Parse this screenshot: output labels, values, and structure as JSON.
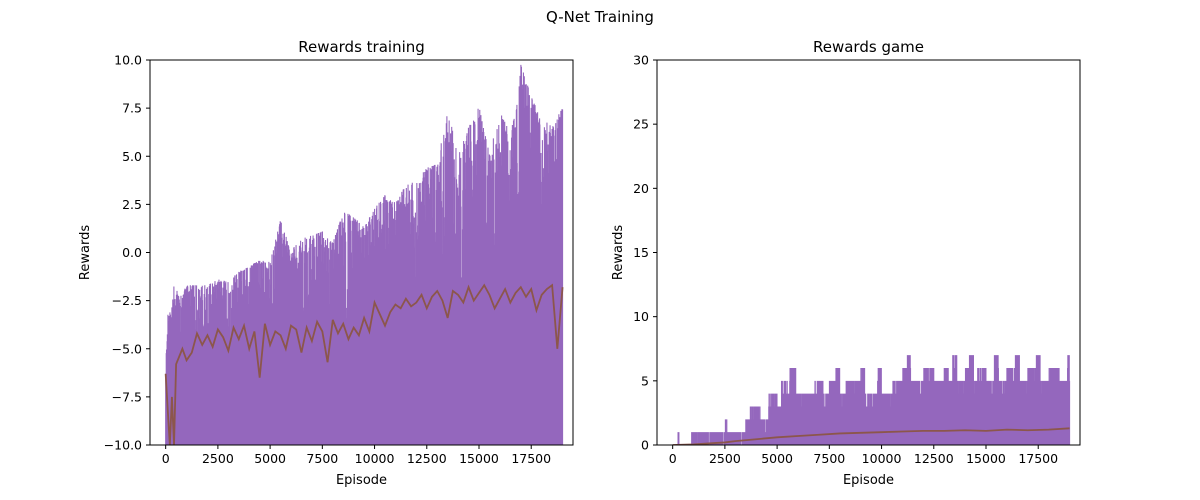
{
  "figure": {
    "title": "Q-Net Training"
  },
  "colors": {
    "raw_series": "#9467bd",
    "smoothed_series": "#8c564b"
  },
  "chart_data": [
    {
      "type": "line",
      "title": "Rewards training",
      "xlabel": "Episode",
      "ylabel": "Rewards",
      "xlim": [
        -750,
        19500
      ],
      "ylim": [
        -10,
        10
      ],
      "xticks": [
        0,
        2500,
        5000,
        7500,
        10000,
        12500,
        15000,
        17500
      ],
      "xtick_labels": [
        "0",
        "2500",
        "5000",
        "7500",
        "10000",
        "12500",
        "15000",
        "17500"
      ],
      "yticks": [
        -10,
        -7.5,
        -5,
        -2.5,
        0,
        2.5,
        5,
        7.5,
        10
      ],
      "ytick_labels": [
        "−10.0",
        "−7.5",
        "−5.0",
        "−2.5",
        "0.0",
        "2.5",
        "5.0",
        "7.5",
        "10.0"
      ],
      "grid": false,
      "series": [
        {
          "role": "raw",
          "x_range": [
            0,
            19000
          ],
          "upper_envelope": [
            [
              0,
              -6.2
            ],
            [
              100,
              -2.6
            ],
            [
              250,
              -3.3
            ],
            [
              400,
              -1.7
            ],
            [
              700,
              -2.3
            ],
            [
              1000,
              -1.7
            ],
            [
              2000,
              -1.7
            ],
            [
              2500,
              -1.4
            ],
            [
              3000,
              -1.5
            ],
            [
              3500,
              -1.0
            ],
            [
              4000,
              -0.7
            ],
            [
              4500,
              -0.4
            ],
            [
              5000,
              -0.5
            ],
            [
              5500,
              1.7
            ],
            [
              6000,
              0.1
            ],
            [
              6500,
              0.7
            ],
            [
              7000,
              0.9
            ],
            [
              7500,
              1.1
            ],
            [
              8000,
              0.5
            ],
            [
              8500,
              2.1
            ],
            [
              9000,
              1.9
            ],
            [
              9500,
              1.3
            ],
            [
              10000,
              2.3
            ],
            [
              10500,
              3.0
            ],
            [
              11000,
              2.6
            ],
            [
              11500,
              3.5
            ],
            [
              12000,
              3.7
            ],
            [
              12500,
              4.4
            ],
            [
              13000,
              4.6
            ],
            [
              13500,
              7.5
            ],
            [
              14000,
              5.0
            ],
            [
              14500,
              6.5
            ],
            [
              15000,
              7.6
            ],
            [
              15500,
              5.1
            ],
            [
              16000,
              7.3
            ],
            [
              16500,
              6.2
            ],
            [
              16800,
              7.5
            ],
            [
              17000,
              9.8
            ],
            [
              17500,
              8.1
            ],
            [
              18000,
              6.9
            ],
            [
              18500,
              6.6
            ],
            [
              19000,
              7.5
            ]
          ],
          "lower_bound": -10
        },
        {
          "role": "smoothed",
          "x": [
            0,
            100,
            200,
            300,
            400,
            500,
            800,
            1000,
            1250,
            1500,
            1750,
            2000,
            2250,
            2500,
            2750,
            3000,
            3250,
            3500,
            3750,
            4000,
            4250,
            4500,
            4750,
            5000,
            5250,
            5500,
            5750,
            6000,
            6250,
            6500,
            6750,
            7000,
            7250,
            7500,
            7750,
            8000,
            8250,
            8500,
            8750,
            9000,
            9250,
            9500,
            9750,
            10000,
            10250,
            10500,
            10750,
            11000,
            11250,
            11500,
            11750,
            12000,
            12250,
            12500,
            12750,
            13000,
            13250,
            13500,
            13750,
            14000,
            14250,
            14500,
            14750,
            15000,
            15250,
            15500,
            15750,
            16000,
            16250,
            16500,
            16750,
            17000,
            17250,
            17500,
            17750,
            18000,
            18250,
            18500,
            18750,
            19000
          ],
          "y": [
            -6.3,
            -8.2,
            -10.0,
            -7.5,
            -10.0,
            -5.8,
            -5.0,
            -5.6,
            -5.2,
            -4.2,
            -4.8,
            -4.3,
            -4.9,
            -4.0,
            -4.4,
            -5.1,
            -3.9,
            -4.5,
            -3.8,
            -5.0,
            -4.1,
            -6.5,
            -3.7,
            -4.8,
            -4.1,
            -4.3,
            -5.0,
            -3.8,
            -4.0,
            -5.2,
            -3.9,
            -4.6,
            -3.6,
            -4.1,
            -5.7,
            -3.5,
            -4.2,
            -3.7,
            -4.5,
            -3.9,
            -4.3,
            -3.4,
            -4.1,
            -2.6,
            -3.2,
            -3.8,
            -3.1,
            -2.7,
            -2.9,
            -2.4,
            -2.8,
            -2.6,
            -2.2,
            -2.9,
            -2.3,
            -2.0,
            -2.5,
            -3.4,
            -2.0,
            -2.2,
            -2.6,
            -1.8,
            -2.5,
            -2.1,
            -1.7,
            -2.2,
            -2.9,
            -2.4,
            -1.9,
            -2.6,
            -2.1,
            -1.8,
            -2.3,
            -1.9,
            -3.0,
            -2.2,
            -1.9,
            -1.7,
            -5.0,
            -1.8
          ]
        }
      ]
    },
    {
      "type": "line",
      "title": "Rewards game",
      "xlabel": "Episode",
      "ylabel": "Rewards",
      "xlim": [
        -750,
        19500
      ],
      "ylim": [
        0,
        30
      ],
      "xticks": [
        0,
        2500,
        5000,
        7500,
        10000,
        12500,
        15000,
        17500
      ],
      "xtick_labels": [
        "0",
        "2500",
        "5000",
        "7500",
        "10000",
        "12500",
        "15000",
        "17500"
      ],
      "yticks": [
        0,
        5,
        10,
        15,
        20,
        25,
        30
      ],
      "ytick_labels": [
        "0",
        "5",
        "10",
        "15",
        "20",
        "25",
        "30"
      ],
      "grid": false,
      "series": [
        {
          "role": "raw",
          "step_envelope": [
            [
              0,
              0
            ],
            [
              250,
              1
            ],
            [
              300,
              0
            ],
            [
              900,
              1
            ],
            [
              2500,
              2
            ],
            [
              2600,
              1
            ],
            [
              3500,
              2
            ],
            [
              3700,
              3
            ],
            [
              4200,
              2
            ],
            [
              4600,
              4
            ],
            [
              5000,
              3
            ],
            [
              5200,
              5
            ],
            [
              5500,
              4
            ],
            [
              5600,
              6
            ],
            [
              5900,
              4
            ],
            [
              6800,
              5
            ],
            [
              7200,
              4
            ],
            [
              7500,
              5
            ],
            [
              7800,
              6
            ],
            [
              8000,
              4
            ],
            [
              8300,
              5
            ],
            [
              9000,
              6
            ],
            [
              9200,
              4
            ],
            [
              9800,
              6
            ],
            [
              10000,
              4
            ],
            [
              10500,
              5
            ],
            [
              11000,
              6
            ],
            [
              11200,
              7
            ],
            [
              11400,
              5
            ],
            [
              12000,
              6
            ],
            [
              12500,
              5
            ],
            [
              13000,
              6
            ],
            [
              13200,
              5
            ],
            [
              13400,
              7
            ],
            [
              13600,
              5
            ],
            [
              14000,
              6
            ],
            [
              14200,
              7
            ],
            [
              14400,
              5
            ],
            [
              14600,
              6
            ],
            [
              15000,
              5
            ],
            [
              15400,
              7
            ],
            [
              15600,
              5
            ],
            [
              16000,
              6
            ],
            [
              16400,
              7
            ],
            [
              16600,
              5
            ],
            [
              17000,
              6
            ],
            [
              17400,
              7
            ],
            [
              17600,
              5
            ],
            [
              18000,
              6
            ],
            [
              18500,
              5
            ],
            [
              18900,
              7
            ],
            [
              19000,
              5
            ]
          ],
          "lower_bound": 0
        },
        {
          "role": "smoothed",
          "x": [
            0,
            1000,
            2000,
            2500,
            3000,
            4000,
            5000,
            6000,
            7000,
            8000,
            9000,
            10000,
            11000,
            12000,
            13000,
            14000,
            15000,
            16000,
            17000,
            18000,
            19000
          ],
          "y": [
            0.0,
            0.05,
            0.15,
            0.2,
            0.3,
            0.45,
            0.6,
            0.7,
            0.8,
            0.9,
            0.95,
            1.0,
            1.05,
            1.1,
            1.1,
            1.15,
            1.1,
            1.2,
            1.15,
            1.2,
            1.3
          ]
        }
      ]
    }
  ]
}
